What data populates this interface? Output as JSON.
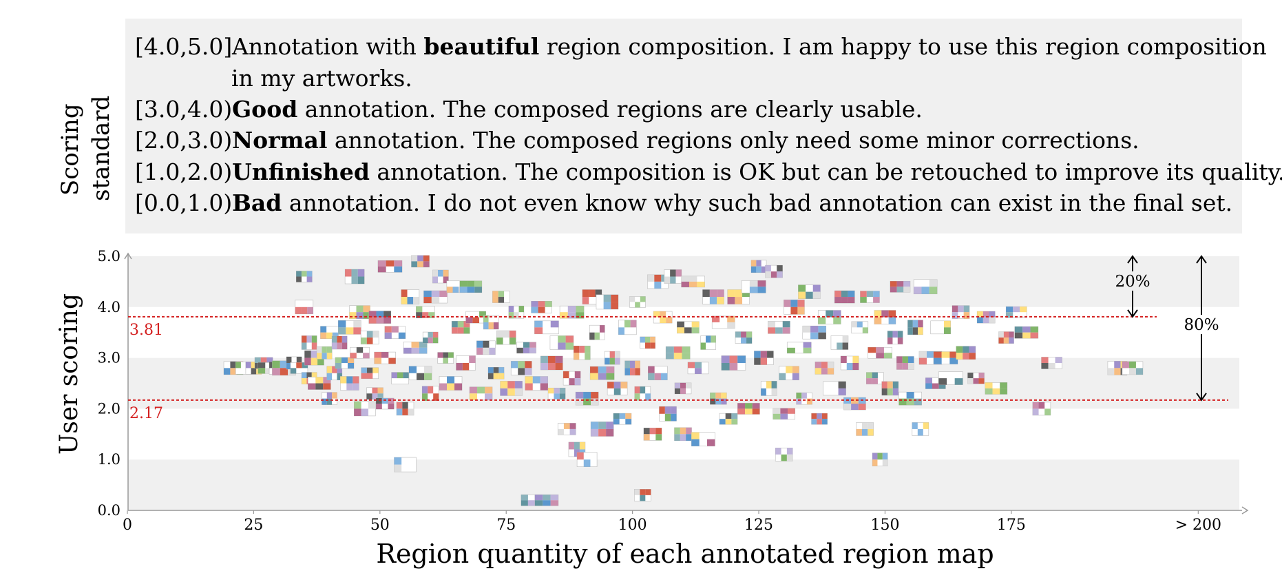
{
  "standard": {
    "label_line1": "Scoring",
    "label_line2": "standard",
    "rows": [
      {
        "range": "[4.0,5.0]",
        "bold": "beautiful",
        "pre": "Annotation with ",
        "post": " region composition. I am happy to use this region composition",
        "cont": "in my artworks."
      },
      {
        "range": "[3.0,4.0)",
        "bold": "Good",
        "pre": "",
        "post": " annotation. The composed regions are clearly usable."
      },
      {
        "range": "[2.0,3.0)",
        "bold": "Normal",
        "pre": "",
        "post": " annotation. The composed regions only need some minor corrections."
      },
      {
        "range": "[1.0,2.0)",
        "bold": "Unfinished",
        "pre": "",
        "post": " annotation. The composition is OK but can be retouched to improve its quality."
      },
      {
        "range": "[0.0,1.0)",
        "bold": "Bad",
        "pre": "",
        "post": " annotation. I do not even know why such bad annotation can exist in the final set."
      }
    ]
  },
  "chart_data": {
    "type": "scatter",
    "xlabel": "Region quantity of each annotated region map",
    "ylabel": "User scoring",
    "xlim": [
      0,
      220
    ],
    "ylim": [
      0.0,
      5.0
    ],
    "x_ticks": [
      "0",
      "25",
      "50",
      "75",
      "100",
      "125",
      "150",
      "175",
      "> 200"
    ],
    "x_tick_values": [
      0,
      25,
      50,
      75,
      100,
      125,
      150,
      175,
      212
    ],
    "y_ticks": [
      "0.0",
      "1.0",
      "2.0",
      "3.0",
      "4.0",
      "5.0"
    ],
    "y_tick_values": [
      0,
      1,
      2,
      3,
      4,
      5
    ],
    "bands": "alternating grey/white per 1.0 score",
    "thresholds": [
      {
        "value": 3.81,
        "label": "3.81",
        "color": "#d42020"
      },
      {
        "value": 2.17,
        "label": "2.17",
        "color": "#d42020"
      }
    ],
    "annotations": [
      {
        "label": "20%",
        "from": 3.81,
        "to": 5.0
      },
      {
        "label": "80%",
        "from": 2.17,
        "to": 5.0
      }
    ],
    "marker": "thumbnail images of annotated region maps",
    "points": [
      [
        21,
        2.8
      ],
      [
        23,
        2.8
      ],
      [
        25,
        2.8
      ],
      [
        27,
        2.9
      ],
      [
        28,
        2.8
      ],
      [
        30,
        2.8
      ],
      [
        31,
        2.8
      ],
      [
        33,
        2.9
      ],
      [
        34,
        2.8
      ],
      [
        35,
        4.6
      ],
      [
        35,
        4.0
      ],
      [
        36,
        3.3
      ],
      [
        36,
        2.6
      ],
      [
        37,
        3.0
      ],
      [
        38,
        2.5
      ],
      [
        39,
        3.1
      ],
      [
        40,
        2.2
      ],
      [
        40,
        3.5
      ],
      [
        41,
        2.7
      ],
      [
        42,
        3.3
      ],
      [
        43,
        2.9
      ],
      [
        44,
        3.6
      ],
      [
        44,
        2.5
      ],
      [
        45,
        4.6
      ],
      [
        46,
        3.9
      ],
      [
        46,
        3.1
      ],
      [
        47,
        2.0
      ],
      [
        48,
        3.4
      ],
      [
        48,
        2.7
      ],
      [
        49,
        2.3
      ],
      [
        50,
        3.8
      ],
      [
        51,
        3.0
      ],
      [
        51,
        2.1
      ],
      [
        52,
        4.8
      ],
      [
        53,
        3.5
      ],
      [
        54,
        2.6
      ],
      [
        55,
        0.9
      ],
      [
        55,
        2.0
      ],
      [
        56,
        4.2
      ],
      [
        57,
        3.2
      ],
      [
        58,
        4.9
      ],
      [
        58,
        2.7
      ],
      [
        59,
        3.9
      ],
      [
        60,
        3.4
      ],
      [
        60,
        2.3
      ],
      [
        61,
        4.2
      ],
      [
        62,
        4.6
      ],
      [
        63,
        3.0
      ],
      [
        64,
        2.5
      ],
      [
        65,
        4.4
      ],
      [
        66,
        3.6
      ],
      [
        67,
        2.9
      ],
      [
        68,
        4.4
      ],
      [
        69,
        3.8
      ],
      [
        70,
        2.3
      ],
      [
        71,
        3.2
      ],
      [
        72,
        3.7
      ],
      [
        73,
        2.7
      ],
      [
        74,
        4.2
      ],
      [
        75,
        3.4
      ],
      [
        76,
        2.4
      ],
      [
        77,
        3.9
      ],
      [
        78,
        2.8
      ],
      [
        79,
        3.2
      ],
      [
        80,
        0.2
      ],
      [
        81,
        2.5
      ],
      [
        82,
        4.0
      ],
      [
        83,
        0.2
      ],
      [
        83,
        3.6
      ],
      [
        84,
        2.9
      ],
      [
        85,
        2.3
      ],
      [
        86,
        3.3
      ],
      [
        87,
        1.6
      ],
      [
        88,
        3.9
      ],
      [
        88,
        2.6
      ],
      [
        89,
        1.2
      ],
      [
        90,
        3.1
      ],
      [
        91,
        1.0
      ],
      [
        91,
        2.2
      ],
      [
        92,
        4.2
      ],
      [
        93,
        3.5
      ],
      [
        94,
        1.6
      ],
      [
        94,
        2.7
      ],
      [
        95,
        4.1
      ],
      [
        96,
        3.0
      ],
      [
        97,
        2.4
      ],
      [
        98,
        1.8
      ],
      [
        99,
        3.6
      ],
      [
        100,
        2.8
      ],
      [
        101,
        4.1
      ],
      [
        102,
        0.3
      ],
      [
        102,
        2.3
      ],
      [
        103,
        3.3
      ],
      [
        104,
        1.5
      ],
      [
        105,
        4.5
      ],
      [
        105,
        2.7
      ],
      [
        106,
        3.8
      ],
      [
        107,
        1.9
      ],
      [
        108,
        4.6
      ],
      [
        109,
        3.1
      ],
      [
        110,
        2.4
      ],
      [
        110,
        1.5
      ],
      [
        111,
        3.6
      ],
      [
        112,
        4.5
      ],
      [
        113,
        2.8
      ],
      [
        114,
        1.4
      ],
      [
        115,
        3.3
      ],
      [
        116,
        4.2
      ],
      [
        117,
        2.2
      ],
      [
        118,
        3.7
      ],
      [
        119,
        1.8
      ],
      [
        120,
        2.9
      ],
      [
        121,
        4.2
      ],
      [
        122,
        3.4
      ],
      [
        123,
        2.0
      ],
      [
        124,
        4.4
      ],
      [
        125,
        4.8
      ],
      [
        126,
        3.0
      ],
      [
        127,
        2.4
      ],
      [
        128,
        4.7
      ],
      [
        129,
        3.6
      ],
      [
        130,
        1.9
      ],
      [
        130,
        1.1
      ],
      [
        131,
        2.7
      ],
      [
        132,
        4.0
      ],
      [
        133,
        3.2
      ],
      [
        134,
        2.2
      ],
      [
        135,
        4.3
      ],
      [
        136,
        3.5
      ],
      [
        137,
        1.8
      ],
      [
        138,
        2.8
      ],
      [
        139,
        3.8
      ],
      [
        140,
        2.4
      ],
      [
        141,
        3.3
      ],
      [
        142,
        4.2
      ],
      [
        143,
        2.9
      ],
      [
        144,
        2.1
      ],
      [
        145,
        3.6
      ],
      [
        146,
        1.6
      ],
      [
        147,
        4.2
      ],
      [
        148,
        2.6
      ],
      [
        149,
        3.1
      ],
      [
        149,
        1.0
      ],
      [
        150,
        3.8
      ],
      [
        151,
        2.4
      ],
      [
        152,
        3.4
      ],
      [
        153,
        4.4
      ],
      [
        154,
        2.9
      ],
      [
        155,
        2.2
      ],
      [
        156,
        3.6
      ],
      [
        157,
        1.6
      ],
      [
        158,
        4.4
      ],
      [
        159,
        3.0
      ],
      [
        160,
        2.5
      ],
      [
        161,
        3.6
      ],
      [
        162,
        3.0
      ],
      [
        163,
        2.6
      ],
      [
        165,
        3.9
      ],
      [
        166,
        3.1
      ],
      [
        168,
        2.6
      ],
      [
        170,
        3.8
      ],
      [
        172,
        2.4
      ],
      [
        174,
        3.4
      ],
      [
        176,
        3.9
      ],
      [
        178,
        3.5
      ],
      [
        181,
        2.0
      ],
      [
        183,
        2.9
      ],
      [
        196,
        2.8
      ],
      [
        199,
        2.8
      ]
    ]
  }
}
